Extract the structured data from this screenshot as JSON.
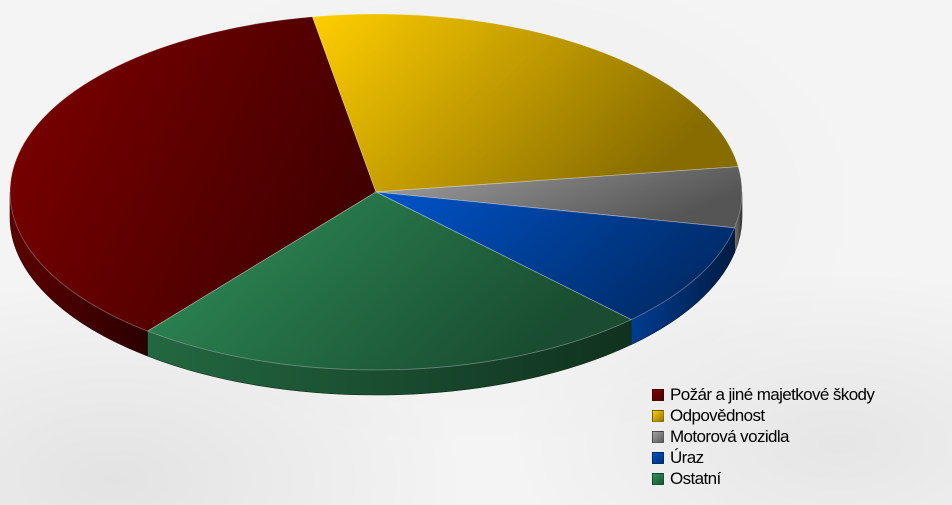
{
  "chart_data": {
    "type": "pie",
    "style": "3d",
    "title": "",
    "slices": [
      {
        "label": "Požár a jiné majetkové škody",
        "value": 36.5,
        "color": "#7a0000"
      },
      {
        "label": "Odpovědnost",
        "value": 25.5,
        "color": "#f5c400"
      },
      {
        "label": "Motorová vozidla",
        "value": 5.5,
        "color": "#9a9a9a"
      },
      {
        "label": "Úraz",
        "value": 9.5,
        "color": "#0050c0"
      },
      {
        "label": "Ostatní",
        "value": 23.0,
        "color": "#2e8b57"
      }
    ],
    "legend": "bottom-right"
  }
}
